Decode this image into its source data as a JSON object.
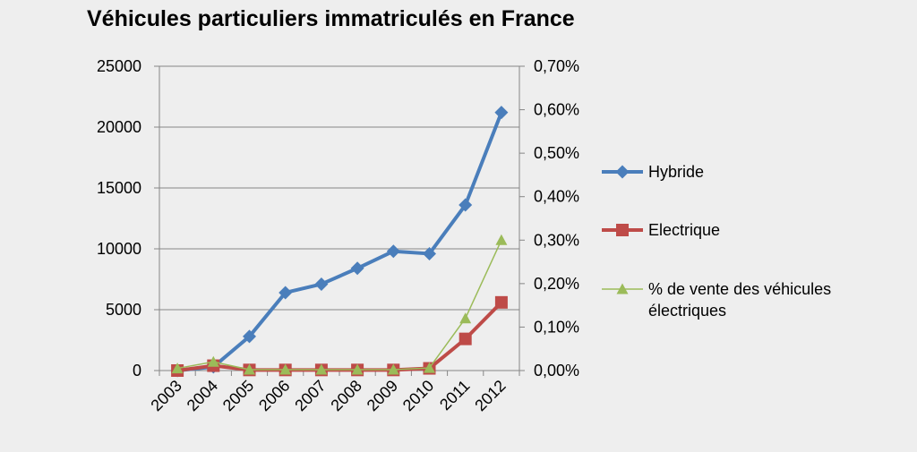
{
  "chart_data": {
    "type": "line",
    "title": "Véhicules particuliers immatriculés en France",
    "categories": [
      "2003",
      "2004",
      "2005",
      "2006",
      "2007",
      "2008",
      "2009",
      "2010",
      "2011",
      "2012"
    ],
    "y_left": {
      "min": 0,
      "max": 25000,
      "ticks": [
        0,
        5000,
        10000,
        15000,
        20000,
        25000
      ],
      "tick_labels": [
        "0",
        "5000",
        "10000",
        "15000",
        "20000",
        "25000"
      ]
    },
    "y_right": {
      "min": 0,
      "max": 0.007,
      "ticks": [
        0,
        0.001,
        0.002,
        0.003,
        0.004,
        0.005,
        0.006,
        0.007
      ],
      "tick_labels": [
        "0,00%",
        "0,10%",
        "0,20%",
        "0,30%",
        "0,40%",
        "0,50%",
        "0,60%",
        "0,70%"
      ]
    },
    "grid": true,
    "legend_position": "right",
    "series": [
      {
        "name": "Hybride",
        "axis": "left",
        "marker": "diamond",
        "color": "#4a7ebb",
        "values": [
          0,
          300,
          2800,
          6400,
          7100,
          8400,
          9800,
          9600,
          13600,
          21200
        ]
      },
      {
        "name": "Electrique",
        "axis": "left",
        "marker": "square",
        "color": "#be4b48",
        "values": [
          0,
          400,
          50,
          50,
          50,
          50,
          50,
          180,
          2600,
          5600
        ]
      },
      {
        "name": "% de vente des véhicules électriques",
        "name_lines": [
          "% de vente des véhicules",
          "électriques"
        ],
        "axis": "right",
        "marker": "triangle",
        "color": "#9bbb59",
        "values": [
          5e-05,
          0.0002,
          2e-05,
          2e-05,
          2e-05,
          2e-05,
          2e-05,
          6e-05,
          0.0012,
          0.003
        ]
      }
    ]
  }
}
